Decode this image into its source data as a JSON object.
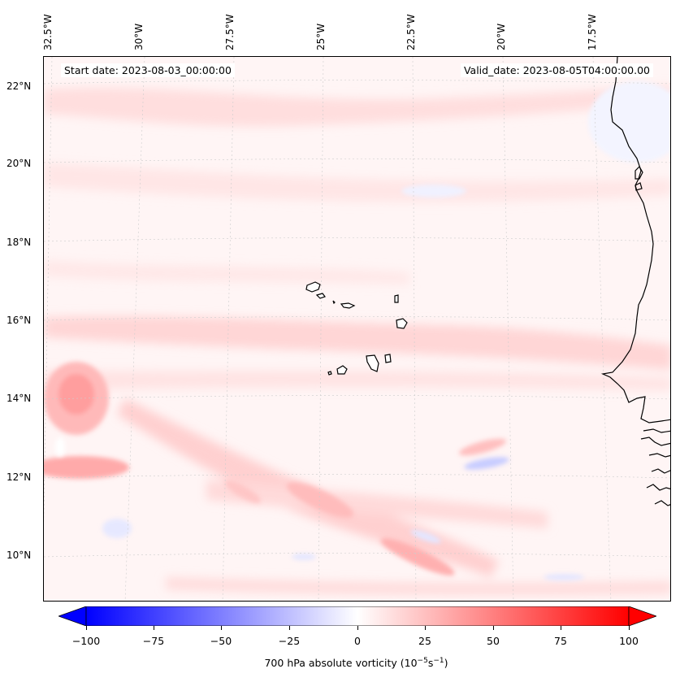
{
  "map": {
    "start_date": "Start date: 2023-08-03_00:00:00",
    "valid_date": "Valid_date: 2023-08-05T04:00:00.00",
    "lon_labels": [
      "32.5°W",
      "30°W",
      "27.5°W",
      "25°W",
      "22.5°W",
      "20°W",
      "17.5°W"
    ],
    "lat_labels": [
      "22°N",
      "20°N",
      "18°N",
      "16°N",
      "14°N",
      "12°N",
      "10°N"
    ],
    "colors": {
      "positive": "#ff0000",
      "negative": "#0000ff",
      "zero": "#ffffff",
      "coast": "#000000"
    }
  },
  "colorbar": {
    "ticks": [
      "−100",
      "−75",
      "−50",
      "−25",
      "0",
      "25",
      "50",
      "75",
      "100"
    ],
    "label_main": "700 hPa absolute vorticity (10",
    "label_exp1": "−5",
    "label_mid": "s",
    "label_exp2": "−1",
    "label_end": ")"
  }
}
